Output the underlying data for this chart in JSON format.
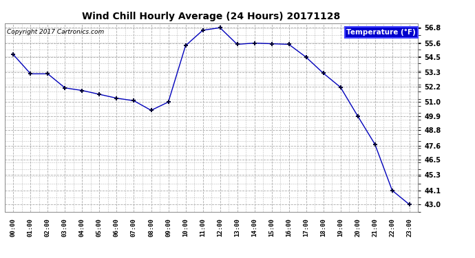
{
  "title": "Wind Chill Hourly Average (24 Hours) 20171128",
  "copyright": "Copyright 2017 Cartronics.com",
  "legend_label": "Temperature (°F)",
  "hours": [
    0,
    1,
    2,
    3,
    4,
    5,
    6,
    7,
    8,
    9,
    10,
    11,
    12,
    13,
    14,
    15,
    16,
    17,
    18,
    19,
    20,
    21,
    22,
    23
  ],
  "values": [
    54.7,
    53.2,
    53.2,
    52.1,
    51.9,
    51.6,
    51.3,
    51.1,
    50.35,
    51.0,
    55.4,
    56.6,
    56.8,
    55.5,
    55.6,
    55.55,
    55.5,
    54.5,
    53.25,
    52.15,
    49.9,
    47.7,
    44.1,
    43.0
  ],
  "ylim_min": 42.45,
  "ylim_max": 57.15,
  "yticks": [
    43.0,
    44.1,
    45.3,
    46.5,
    47.6,
    48.8,
    49.9,
    51.0,
    52.2,
    53.3,
    54.5,
    55.6,
    56.8
  ],
  "line_color": "#0000bb",
  "marker_color": "#000033",
  "bg_color": "#ffffff",
  "plot_bg_color": "#ffffff",
  "grid_color": "#aaaaaa",
  "title_color": "#000000",
  "copyright_color": "#000000",
  "legend_bg": "#0000cc",
  "legend_text_color": "#ffffff"
}
